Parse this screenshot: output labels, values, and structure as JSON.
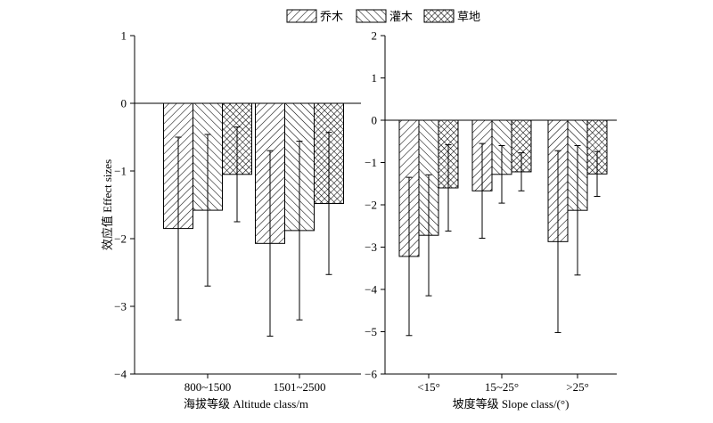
{
  "legend": {
    "entries": [
      {
        "name": "乔木",
        "pattern": "hatch-dense"
      },
      {
        "name": "灌木",
        "pattern": "hatch-back"
      },
      {
        "name": "草地",
        "pattern": "crosshatch"
      }
    ],
    "placement": "top-center"
  },
  "chart_data": [
    {
      "type": "bar",
      "categories": [
        "800~1500",
        "1501~2500"
      ],
      "series": [
        {
          "name": "乔木",
          "values": [
            -1.85,
            -2.07
          ],
          "error": [
            1.35,
            1.37
          ]
        },
        {
          "name": "灌木",
          "values": [
            -1.58,
            -1.88
          ],
          "error": [
            1.12,
            1.32
          ]
        },
        {
          "name": "草地",
          "values": [
            -1.05,
            -1.48
          ],
          "error": [
            0.7,
            1.05
          ]
        }
      ],
      "xlabel": "海拔等级 Altitude class/m",
      "ylabel": "效应值 Effect sizes",
      "ylim": [
        -4,
        1
      ],
      "yticks": [
        1,
        0,
        -1,
        -2,
        -3,
        -4
      ],
      "ytick_labels": [
        "1",
        "0",
        "−1",
        "−2",
        "−3",
        "−4"
      ],
      "grid": false
    },
    {
      "type": "bar",
      "categories": [
        "<15°",
        "15~25°",
        ">25°"
      ],
      "series": [
        {
          "name": "乔木",
          "values": [
            -3.22,
            -1.67,
            -2.87
          ],
          "error": [
            1.87,
            1.12,
            2.15
          ]
        },
        {
          "name": "灌木",
          "values": [
            -2.72,
            -1.28,
            -2.13
          ],
          "error": [
            1.43,
            0.68,
            1.53
          ]
        },
        {
          "name": "草地",
          "values": [
            -1.6,
            -1.22,
            -1.27
          ],
          "error": [
            1.02,
            0.45,
            0.53
          ]
        }
      ],
      "xlabel": "坡度等级 Slope class/(°)",
      "ylabel": "",
      "ylim": [
        -6,
        2
      ],
      "yticks": [
        2,
        1,
        0,
        -1,
        -2,
        -3,
        -4,
        -5,
        -6
      ],
      "ytick_labels": [
        "2",
        "1",
        "0",
        "−1",
        "−2",
        "−3",
        "−4",
        "−5",
        "−6"
      ],
      "grid": false
    }
  ]
}
